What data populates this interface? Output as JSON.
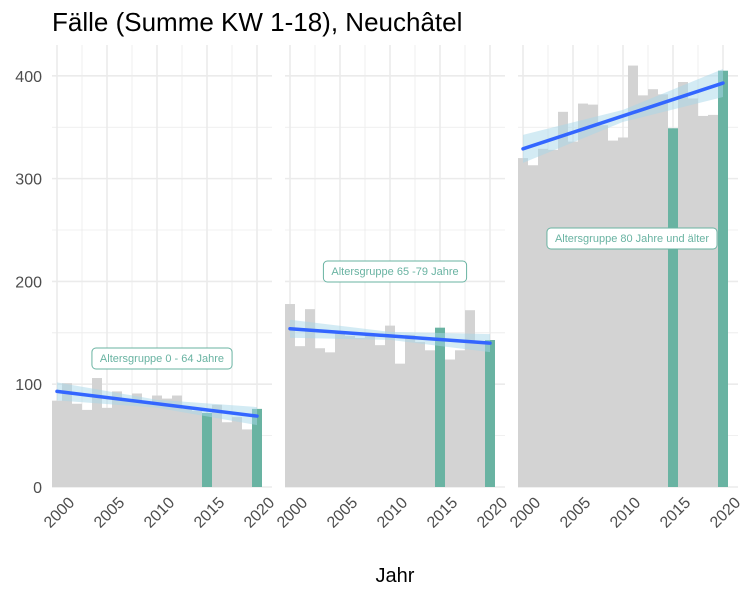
{
  "chart_data": {
    "type": "bar",
    "title": "Fälle (Summe KW 1-18), Neuchâtel",
    "xlabel": "Jahr",
    "ylabel": "",
    "ylim": [
      0,
      430
    ],
    "y_ticks": [
      0,
      100,
      200,
      300,
      400
    ],
    "x_ticks": [
      2000,
      2005,
      2010,
      2015,
      2020
    ],
    "grid": true,
    "colors": {
      "bar": "#d3d3d3",
      "highlight": "#69b3a2",
      "trend": "#3366ff",
      "band": "#a8d8ea",
      "grid": "#ebebeb",
      "text": "#4d4d4d"
    },
    "highlight_years": [
      2015,
      2020
    ],
    "panels": [
      {
        "label": "Altersgruppe 0 - 64 Jahre",
        "x": [
          2000,
          2001,
          2002,
          2003,
          2004,
          2005,
          2006,
          2007,
          2008,
          2009,
          2010,
          2011,
          2012,
          2013,
          2014,
          2015,
          2016,
          2017,
          2018,
          2019,
          2020
        ],
        "values": [
          84,
          101,
          81,
          75,
          106,
          77,
          93,
          84,
          91,
          82,
          89,
          86,
          89,
          76,
          74,
          72,
          80,
          63,
          68,
          56,
          76
        ],
        "trend": {
          "start": [
            2000,
            93
          ],
          "end": [
            2020,
            69
          ]
        }
      },
      {
        "label": "Altersgruppe 65 -79 Jahre",
        "x": [
          2000,
          2001,
          2002,
          2003,
          2004,
          2005,
          2006,
          2007,
          2008,
          2009,
          2010,
          2011,
          2012,
          2013,
          2014,
          2015,
          2016,
          2017,
          2018,
          2019,
          2020
        ],
        "values": [
          178,
          137,
          173,
          135,
          131,
          150,
          147,
          145,
          148,
          138,
          157,
          120,
          148,
          141,
          133,
          155,
          124,
          133,
          172,
          140,
          143
        ],
        "trend": {
          "start": [
            2000,
            154
          ],
          "end": [
            2020,
            140
          ]
        }
      },
      {
        "label": "Altersgruppe 80 Jahre und älter",
        "x": [
          2000,
          2001,
          2002,
          2003,
          2004,
          2005,
          2006,
          2007,
          2008,
          2009,
          2010,
          2011,
          2012,
          2013,
          2014,
          2015,
          2016,
          2017,
          2018,
          2019,
          2020
        ],
        "values": [
          320,
          313,
          329,
          328,
          365,
          336,
          373,
          372,
          352,
          337,
          340,
          410,
          381,
          387,
          382,
          349,
          394,
          378,
          361,
          362,
          405
        ],
        "trend": {
          "start": [
            2000,
            329
          ],
          "end": [
            2020,
            393
          ]
        }
      }
    ]
  }
}
